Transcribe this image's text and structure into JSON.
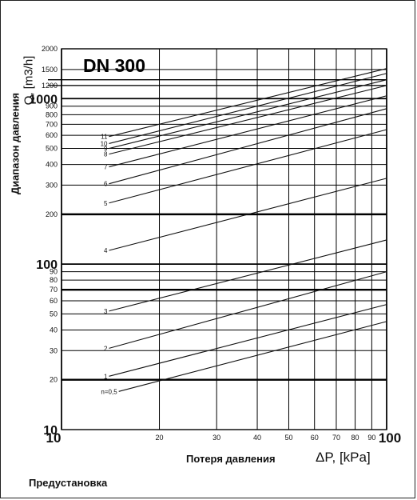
{
  "chart_data": {
    "type": "line",
    "title": "DN 300",
    "xlabel": "Потеря давления",
    "xunit": "ΔP, [kPa]",
    "ylabel": "Диапазон давления",
    "yunit": "Q, [m3/h]",
    "footer": "Предустановка",
    "xscale": "log",
    "yscale": "log",
    "xlim": [
      10,
      100
    ],
    "ylim": [
      10,
      2000
    ],
    "grid": true,
    "x_ticks": [
      {
        "v": 10,
        "t": "10",
        "major": true
      },
      {
        "v": 20,
        "t": "20"
      },
      {
        "v": 30,
        "t": "30"
      },
      {
        "v": 40,
        "t": "40"
      },
      {
        "v": 50,
        "t": "50"
      },
      {
        "v": 60,
        "t": "60"
      },
      {
        "v": 70,
        "t": "70"
      },
      {
        "v": 80,
        "t": "80"
      },
      {
        "v": 90,
        "t": "90"
      },
      {
        "v": 100,
        "t": "100",
        "major": true
      }
    ],
    "y_ticks": [
      {
        "v": 10,
        "t": "10",
        "major": true
      },
      {
        "v": 20,
        "t": "20"
      },
      {
        "v": 30,
        "t": "30"
      },
      {
        "v": 40,
        "t": "40"
      },
      {
        "v": 50,
        "t": "50"
      },
      {
        "v": 60,
        "t": "60"
      },
      {
        "v": 70,
        "t": "70"
      },
      {
        "v": 80,
        "t": "80"
      },
      {
        "v": 90,
        "t": "90"
      },
      {
        "v": 100,
        "t": "100",
        "major": true
      },
      {
        "v": 200,
        "t": "200"
      },
      {
        "v": 300,
        "t": "300"
      },
      {
        "v": 400,
        "t": "400"
      },
      {
        "v": 500,
        "t": "500"
      },
      {
        "v": 600,
        "t": "600"
      },
      {
        "v": 700,
        "t": "700"
      },
      {
        "v": 800,
        "t": "800"
      },
      {
        "v": 900,
        "t": "900"
      },
      {
        "v": 1000,
        "t": "1000",
        "major": true
      },
      {
        "v": 1200,
        "t": "1200"
      },
      {
        "v": 1500,
        "t": "1500"
      },
      {
        "v": 2000,
        "t": "2000"
      }
    ],
    "series": [
      {
        "name": "n=0,5",
        "x": [
          15,
          100
        ],
        "y": [
          17,
          45
        ]
      },
      {
        "name": "1",
        "x": [
          14,
          100
        ],
        "y": [
          21,
          57
        ]
      },
      {
        "name": "2",
        "x": [
          14,
          100
        ],
        "y": [
          31,
          90
        ]
      },
      {
        "name": "3",
        "x": [
          14,
          100
        ],
        "y": [
          52,
          140
        ]
      },
      {
        "name": "4",
        "x": [
          14,
          100
        ],
        "y": [
          121,
          330
        ]
      },
      {
        "name": "5",
        "x": [
          14,
          100
        ],
        "y": [
          234,
          650
        ]
      },
      {
        "name": "6",
        "x": [
          14,
          100
        ],
        "y": [
          306,
          870
        ]
      },
      {
        "name": "7",
        "x": [
          14,
          100
        ],
        "y": [
          387,
          1040
        ]
      },
      {
        "name": "8",
        "x": [
          14,
          100
        ],
        "y": [
          462,
          1200
        ]
      },
      {
        "name": "9",
        "x": [
          14,
          100
        ],
        "y": [
          500,
          1300
        ]
      },
      {
        "name": "10",
        "x": [
          14,
          100
        ],
        "y": [
          535,
          1420
        ]
      },
      {
        "name": "11",
        "x": [
          14,
          100
        ],
        "y": [
          590,
          1520
        ]
      }
    ]
  }
}
